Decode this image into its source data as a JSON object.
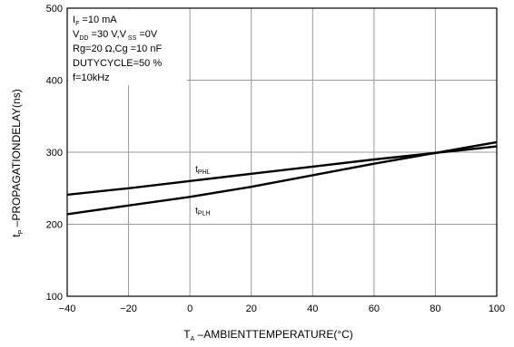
{
  "chart_data": {
    "type": "line",
    "xlabel": {
      "main": "T",
      "sub": "A",
      "rest": " –AMBIENTTEMPERATURE(°C)"
    },
    "ylabel": {
      "main": "t",
      "sub": "P",
      "rest": " –PROPAGATIONDELAY(ns)"
    },
    "xlim": [
      -40,
      100
    ],
    "ylim": [
      100,
      500
    ],
    "x_ticks": [
      -40,
      -20,
      0,
      20,
      40,
      60,
      80,
      100
    ],
    "x_tick_labels": [
      "−40",
      "−20",
      "0",
      "20",
      "40",
      "60",
      "80",
      "100"
    ],
    "y_ticks": [
      100,
      200,
      300,
      400,
      500
    ],
    "y_tick_labels": [
      "100",
      "200",
      "300",
      "400",
      "500"
    ],
    "grid": true,
    "conditions": [
      {
        "main": "I",
        "sub": "F",
        "rest": " =10 mA"
      },
      {
        "main": "V",
        "sub": "DD",
        "rest": " =30 V,V",
        "sub2": " SS",
        "rest2": " =0V"
      },
      {
        "main": "Rg=20  ",
        "symbol": "Ω",
        "rest": ",Cg =10  nF"
      },
      {
        "main": "DUTYCYCLE=50 %"
      },
      {
        "main": "f=10kHz"
      }
    ],
    "series": [
      {
        "name": {
          "main": "t",
          "sub": "PHL"
        },
        "x": [
          -40,
          -20,
          0,
          20,
          40,
          60,
          80,
          100
        ],
        "values": [
          241,
          250,
          260,
          270,
          280,
          290,
          299,
          308
        ]
      },
      {
        "name": {
          "main": "t",
          "sub": "PLH"
        },
        "x": [
          -40,
          -20,
          0,
          20,
          40,
          60,
          80,
          100
        ],
        "values": [
          214,
          226,
          238,
          252,
          268,
          284,
          299,
          314
        ]
      }
    ]
  }
}
